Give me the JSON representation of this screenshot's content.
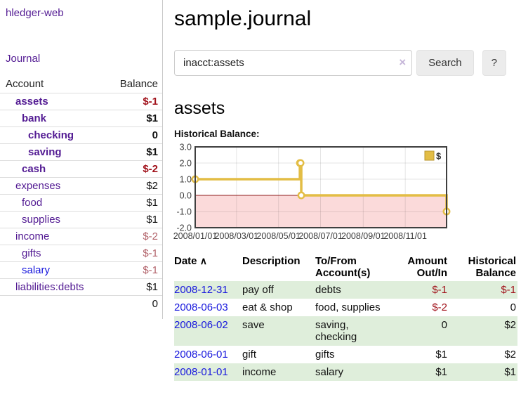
{
  "app": {
    "brand": "hledger-web",
    "nav_journal": "Journal"
  },
  "sidebar": {
    "header": {
      "account": "Account",
      "balance": "Balance"
    },
    "accounts": [
      {
        "name": "assets",
        "balance": "$-1"
      },
      {
        "name": "bank",
        "balance": "$1"
      },
      {
        "name": "checking",
        "balance": "0"
      },
      {
        "name": "saving",
        "balance": "$1"
      },
      {
        "name": "cash",
        "balance": "$-2"
      },
      {
        "name": "expenses",
        "balance": "$2"
      },
      {
        "name": "food",
        "balance": "$1"
      },
      {
        "name": "supplies",
        "balance": "$1"
      },
      {
        "name": "income",
        "balance": "$-2"
      },
      {
        "name": "gifts",
        "balance": "$-1"
      },
      {
        "name": "salary",
        "balance": "$-1"
      },
      {
        "name": "liabilities:debts",
        "balance": "$1"
      }
    ],
    "total": "0"
  },
  "header": {
    "title": "sample.journal"
  },
  "search": {
    "value": "inacct:assets",
    "clear_icon": "×",
    "button_label": "Search",
    "help_label": "?"
  },
  "account_page": {
    "heading": "assets",
    "chart_label": "Historical Balance:"
  },
  "chart_data": {
    "type": "line",
    "step": true,
    "x_domain": [
      "2008-01-01",
      "2008-12-31"
    ],
    "ylim": [
      -2,
      3
    ],
    "y_ticks": [
      {
        "value": 3,
        "label": "3.0"
      },
      {
        "value": 2,
        "label": "2.0"
      },
      {
        "value": 1,
        "label": "1.0"
      },
      {
        "value": 0,
        "label": "0.0"
      },
      {
        "value": -1,
        "label": "-1.0"
      },
      {
        "value": -2,
        "label": "-2.0"
      }
    ],
    "x_ticks": [
      {
        "date": "2008-01-01",
        "label": "2008/01/01"
      },
      {
        "date": "2008-03-01",
        "label": "2008/03/01"
      },
      {
        "date": "2008-05-01",
        "label": "2008/05/01"
      },
      {
        "date": "2008-07-01",
        "label": "2008/07/01"
      },
      {
        "date": "2008-09-01",
        "label": "2008/09/01"
      },
      {
        "date": "2008-11-01",
        "label": "2008/11/01"
      }
    ],
    "series": [
      {
        "name": "$",
        "color": "#e3bd45",
        "points": [
          [
            "2008-01-01",
            1
          ],
          [
            "2008-06-01",
            2
          ],
          [
            "2008-06-02",
            2
          ],
          [
            "2008-06-03",
            0
          ],
          [
            "2008-12-31",
            -1
          ]
        ]
      }
    ],
    "legend_position": "top-right",
    "grid": true,
    "colors": {
      "negative_region": "#fbdada",
      "zero_line": "#8e1a1a",
      "grid_line": "rgba(0,0,0,0.10)",
      "border": "#3f3f3f",
      "legend_border": "#b8962e",
      "tick_text": "#3c3c3c"
    }
  },
  "register": {
    "columns": {
      "date": "Date",
      "sort_icon": "∧",
      "description": "Description",
      "accounts": "To/From\nAccount(s)",
      "amount": "Amount\nOut/In",
      "balance": "Historical\nBalance"
    },
    "rows": [
      {
        "date": "2008-12-31",
        "description": "pay off",
        "accounts": "debts",
        "amount": "$-1",
        "balance": "$-1"
      },
      {
        "date": "2008-06-03",
        "description": "eat & shop",
        "accounts": "food, supplies",
        "amount": "$-2",
        "balance": "0"
      },
      {
        "date": "2008-06-02",
        "description": "save",
        "accounts": "saving,\nchecking",
        "amount": "0",
        "balance": "$2"
      },
      {
        "date": "2008-06-01",
        "description": "gift",
        "accounts": "gifts",
        "amount": "$1",
        "balance": "$2"
      },
      {
        "date": "2008-01-01",
        "description": "income",
        "accounts": "salary",
        "amount": "$1",
        "balance": "$1"
      }
    ]
  }
}
